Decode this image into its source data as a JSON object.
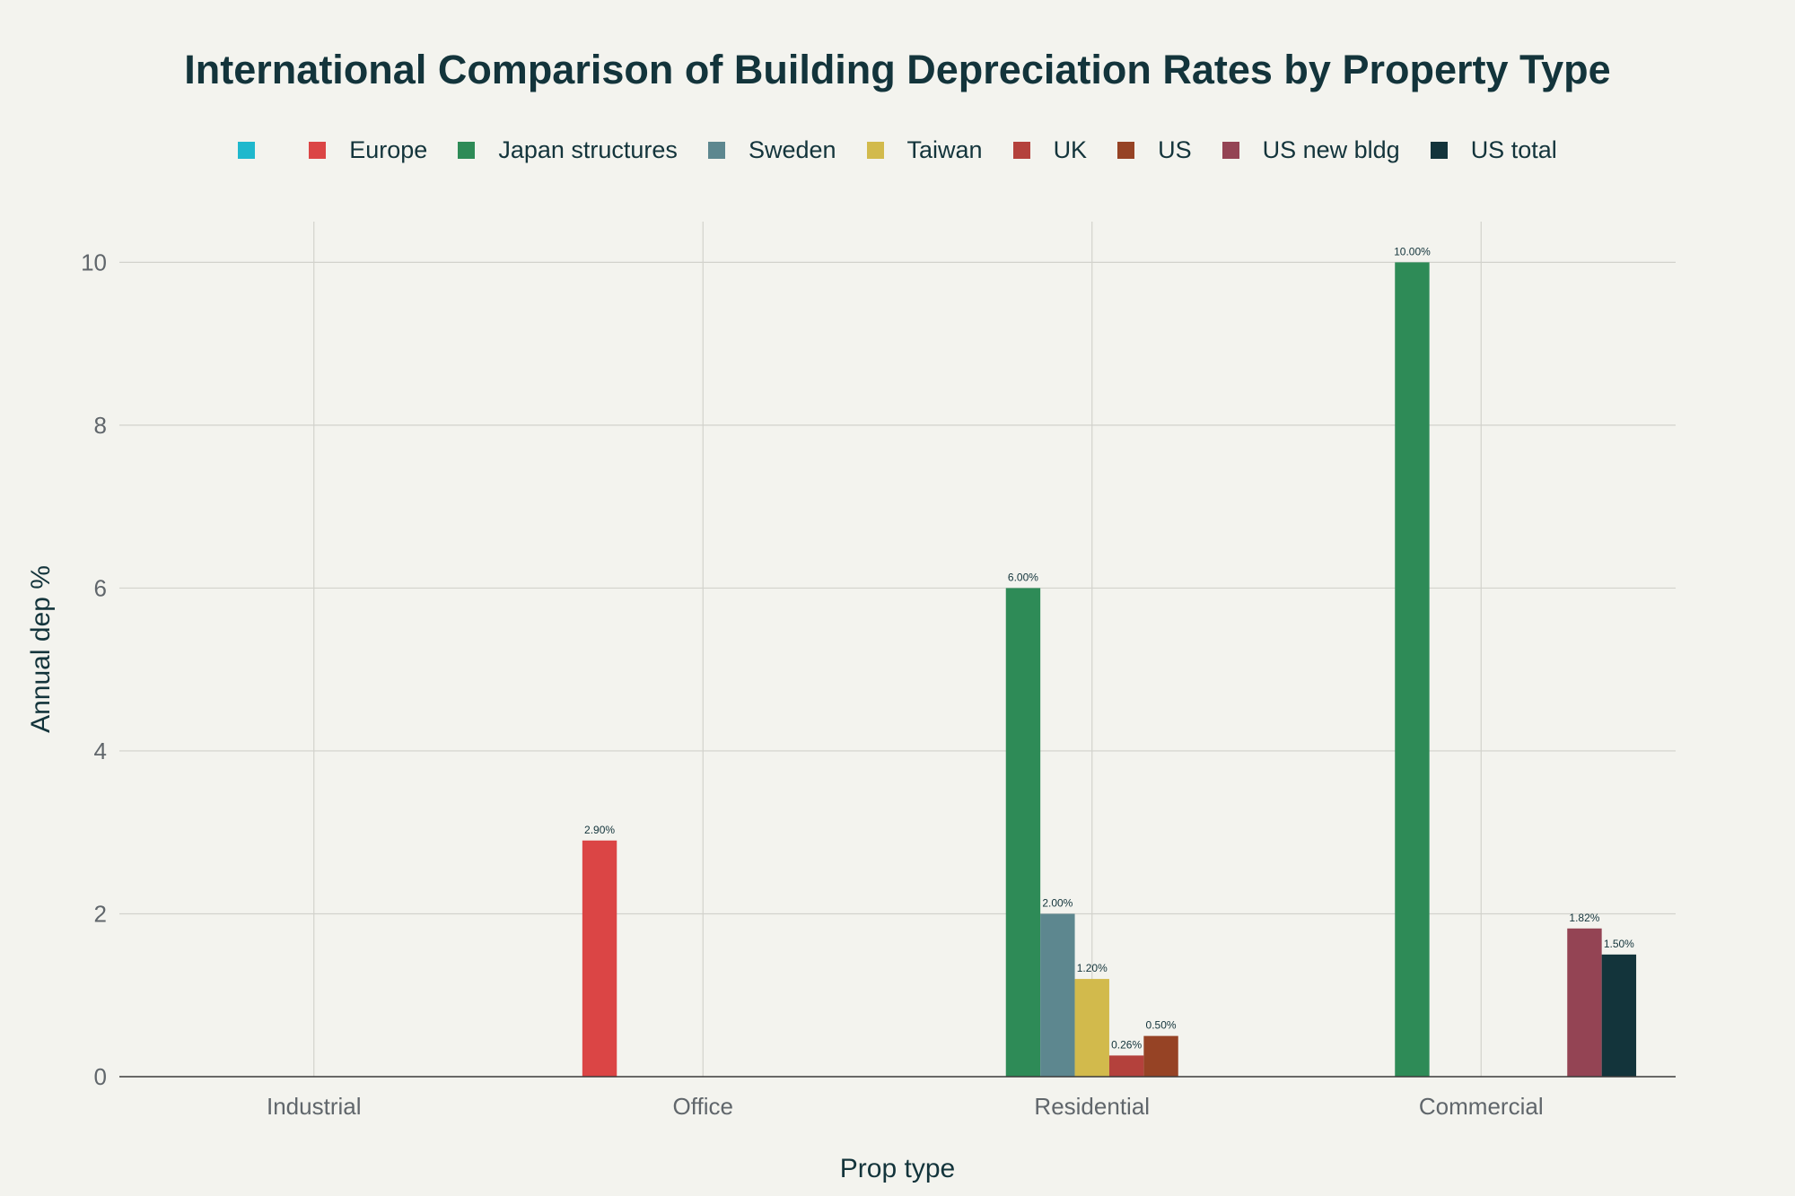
{
  "chart_data": {
    "type": "bar",
    "title": "International Comparison of Building Depreciation Rates by Property Type",
    "xlabel": "Prop type",
    "ylabel": "Annual dep %",
    "categories": [
      "Industrial",
      "Office",
      "Residential",
      "Commercial"
    ],
    "ylim": [
      0,
      10.5
    ],
    "yticks": [
      0,
      2,
      4,
      6,
      8,
      10
    ],
    "grid": true,
    "legend_position": "top",
    "series": [
      {
        "name": "",
        "color": "#1fb8cd",
        "values": [
          null,
          null,
          null,
          null
        ],
        "labels": [
          null,
          null,
          null,
          null
        ]
      },
      {
        "name": "Europe",
        "color": "#db4545",
        "values": [
          null,
          2.9,
          null,
          null
        ],
        "labels": [
          null,
          "2.90%",
          null,
          null
        ]
      },
      {
        "name": "Japan structures",
        "color": "#2e8b57",
        "values": [
          null,
          null,
          6.0,
          10.0
        ],
        "labels": [
          null,
          null,
          "6.00%",
          "10.00%"
        ]
      },
      {
        "name": "Sweden",
        "color": "#5d878f",
        "values": [
          null,
          null,
          2.0,
          null
        ],
        "labels": [
          null,
          null,
          "2.00%",
          null
        ]
      },
      {
        "name": "Taiwan",
        "color": "#d2ba4c",
        "values": [
          null,
          null,
          1.2,
          null
        ],
        "labels": [
          null,
          null,
          "1.20%",
          null
        ]
      },
      {
        "name": "UK",
        "color": "#b4413c",
        "values": [
          null,
          null,
          0.26,
          null
        ],
        "labels": [
          null,
          null,
          "0.26%",
          null
        ]
      },
      {
        "name": "US",
        "color": "#964325",
        "values": [
          null,
          null,
          0.5,
          null
        ],
        "labels": [
          null,
          null,
          "0.50%",
          null
        ]
      },
      {
        "name": "US new bldg",
        "color": "#944454",
        "values": [
          null,
          null,
          null,
          1.82
        ],
        "labels": [
          null,
          null,
          null,
          "1.82%"
        ]
      },
      {
        "name": "US total",
        "color": "#13343b",
        "values": [
          null,
          null,
          null,
          1.5
        ],
        "labels": [
          null,
          null,
          null,
          "1.50%"
        ]
      }
    ]
  }
}
